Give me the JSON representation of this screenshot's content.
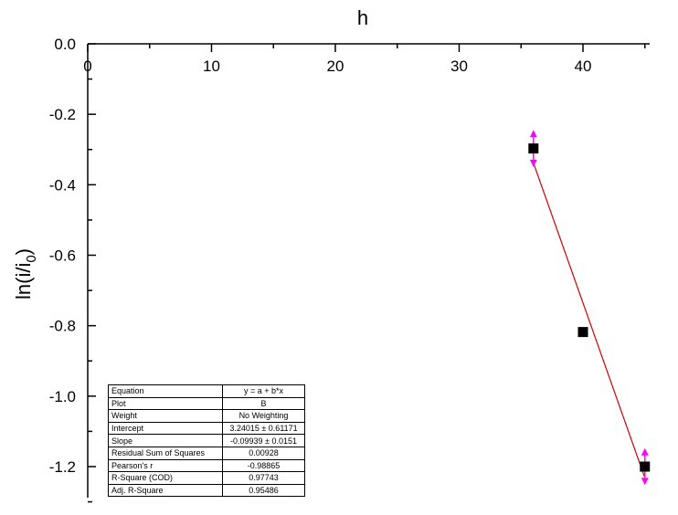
{
  "chart_data": {
    "type": "scatter",
    "title": "",
    "xlabel": "h",
    "ylabel_main": "ln(i/i",
    "ylabel_sub": "0",
    "ylabel_tail": ")",
    "xlim": [
      0,
      46
    ],
    "ylim": [
      -1.3,
      0
    ],
    "x_ticks": [
      0,
      10,
      20,
      30,
      40
    ],
    "x_tick_labels": [
      "0",
      "10",
      "20",
      "30",
      "40"
    ],
    "y_ticks": [
      0.0,
      -0.2,
      -0.4,
      -0.6,
      -0.8,
      -1.0,
      -1.2
    ],
    "y_tick_labels": [
      "0.0",
      "-0.2",
      "-0.4",
      "-0.6",
      "-0.8",
      "-1.0",
      "-1.2"
    ],
    "x_axis_position": "top",
    "grid": false,
    "x": [
      36,
      40,
      45
    ],
    "y": [
      -0.297,
      -0.818,
      -1.2
    ],
    "error_bars": [
      0.05,
      0,
      0.05
    ],
    "fit_line": {
      "x": [
        36,
        45
      ],
      "y": [
        -0.338,
        -1.232
      ]
    },
    "colors": {
      "points": "#000000",
      "fit": "#cc0000",
      "error_bars": "#ff00ff"
    }
  },
  "fit_table": [
    [
      "Equation",
      "y = a + b*x"
    ],
    [
      "Plot",
      "B"
    ],
    [
      "Weight",
      "No Weighting"
    ],
    [
      "Intercept",
      "3.24015 ± 0.61171"
    ],
    [
      "Slope",
      "-0.09939 ± 0.0151"
    ],
    [
      "Residual Sum of Squares",
      "0.00928"
    ],
    [
      "Pearson's r",
      "-0.98865"
    ],
    [
      "R-Square (COD)",
      "0.97743"
    ],
    [
      "Adj. R-Square",
      "0.95486"
    ]
  ]
}
